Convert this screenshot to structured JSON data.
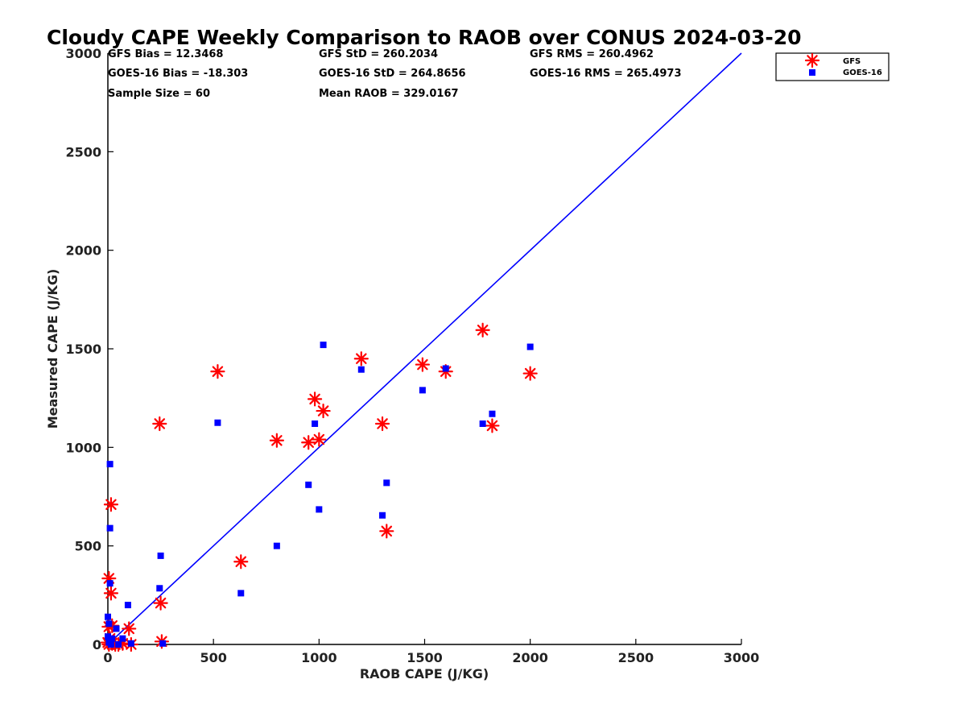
{
  "chart_data": {
    "type": "scatter",
    "title": "Cloudy CAPE Weekly Comparison to RAOB over CONUS 2024-03-20",
    "xlabel": "RAOB CAPE (J/KG)",
    "ylabel": "Measured CAPE (J/KG)",
    "xlim": [
      0,
      3000
    ],
    "ylim": [
      0,
      3000
    ],
    "xticks": [
      "0",
      "500",
      "1000",
      "1500",
      "2000",
      "2500",
      "3000"
    ],
    "yticks": [
      "0",
      "500",
      "1000",
      "1500",
      "2000",
      "2500",
      "3000"
    ],
    "grid": false,
    "legend_position": "top-right",
    "stats": [
      "GFS Bias = 12.3468",
      "GFS StD = 260.2034",
      "GFS RMS = 260.4962",
      "GOES-16 Bias = -18.303",
      "GOES-16 StD = 264.8656",
      "GOES-16 RMS = 265.4973",
      "Sample Size = 60",
      "Mean RAOB = 329.0167"
    ],
    "reference_line": {
      "type": "one-to-one",
      "color": "#0000ff"
    },
    "series": [
      {
        "name": "GFS",
        "marker": "asterisk",
        "color": "#ff0000",
        "points": [
          [
            520,
            1385
          ],
          [
            245,
            1120
          ],
          [
            250,
            210
          ],
          [
            255,
            15
          ],
          [
            630,
            420
          ],
          [
            800,
            1035
          ],
          [
            950,
            1025
          ],
          [
            980,
            1245
          ],
          [
            1000,
            1040
          ],
          [
            1020,
            1185
          ],
          [
            1200,
            1450
          ],
          [
            1300,
            1120
          ],
          [
            1320,
            575
          ],
          [
            1490,
            1420
          ],
          [
            1600,
            1385
          ],
          [
            1775,
            1595
          ],
          [
            1820,
            1110
          ],
          [
            2000,
            1375
          ],
          [
            15,
            710
          ],
          [
            5,
            335
          ],
          [
            15,
            260
          ],
          [
            5,
            90
          ],
          [
            20,
            95
          ],
          [
            10,
            30
          ],
          [
            0,
            10
          ],
          [
            20,
            5
          ],
          [
            35,
            0
          ],
          [
            50,
            0
          ],
          [
            70,
            5
          ],
          [
            100,
            80
          ],
          [
            110,
            0
          ],
          [
            5,
            0
          ]
        ]
      },
      {
        "name": "GOES-16",
        "marker": "square",
        "color": "#0000ff",
        "points": [
          [
            520,
            1125
          ],
          [
            245,
            285
          ],
          [
            250,
            450
          ],
          [
            260,
            5
          ],
          [
            630,
            260
          ],
          [
            800,
            500
          ],
          [
            950,
            810
          ],
          [
            980,
            1120
          ],
          [
            1000,
            685
          ],
          [
            1020,
            1520
          ],
          [
            1200,
            1395
          ],
          [
            1300,
            655
          ],
          [
            1320,
            820
          ],
          [
            1490,
            1290
          ],
          [
            1600,
            1400
          ],
          [
            1775,
            1120
          ],
          [
            1820,
            1170
          ],
          [
            2000,
            1510
          ],
          [
            10,
            915
          ],
          [
            10,
            590
          ],
          [
            10,
            310
          ],
          [
            0,
            140
          ],
          [
            5,
            105
          ],
          [
            0,
            40
          ],
          [
            15,
            0
          ],
          [
            20,
            30
          ],
          [
            40,
            80
          ],
          [
            50,
            0
          ],
          [
            70,
            30
          ],
          [
            95,
            200
          ],
          [
            110,
            5
          ],
          [
            5,
            10
          ]
        ]
      }
    ]
  }
}
